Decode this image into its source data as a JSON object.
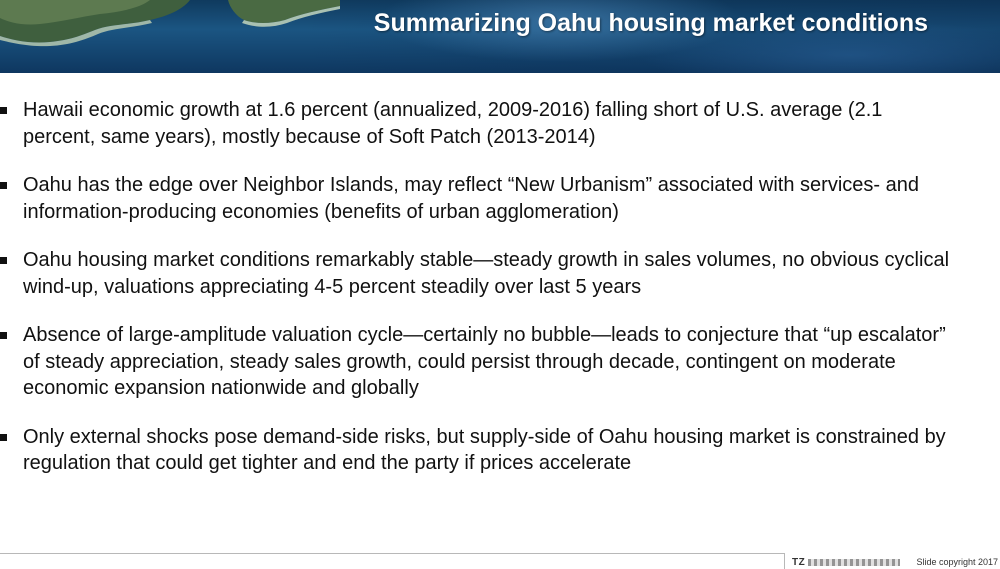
{
  "slide": {
    "title": "Summarizing Oahu housing market conditions",
    "bullets": [
      {
        "text": "Hawaii economic growth at 1.6 percent (annualized, 2009-2016) falling short of U.S. average (2.1 percent, same years), mostly because of Soft Patch (2013-2014)"
      },
      {
        "text": "Oahu has the edge over Neighbor Islands, may reflect “New Urbanism” associated with services- and information-producing economies (benefits of urban agglomeration)"
      },
      {
        "text": "Oahu housing market conditions remarkably stable—steady growth in sales volumes, no obvious cyclical wind-up, valuations appreciating 4-5 percent steadily over last 5 years"
      },
      {
        "text": "Absence of large-amplitude valuation cycle—certainly no bubble—leads to conjecture that “up escalator” of steady appreciation, steady sales growth, could persist through decade, contingent on moderate economic expansion nationwide and globally"
      },
      {
        "text": "Only external shocks pose demand-side risks, but supply-side of Oahu housing market is constrained by regulation that could get tighter and end the party if prices accelerate"
      }
    ],
    "footer": {
      "logo_mark": "TZ",
      "copyright": "Slide copyright 2017"
    }
  },
  "theme": {
    "banner_color": "#1b5582",
    "title_color": "#ffffff",
    "text_color": "#111111"
  },
  "icons": {
    "banner_image": "aerial-island-coastline-photo",
    "bullet_marker": "square-bullet-icon"
  }
}
